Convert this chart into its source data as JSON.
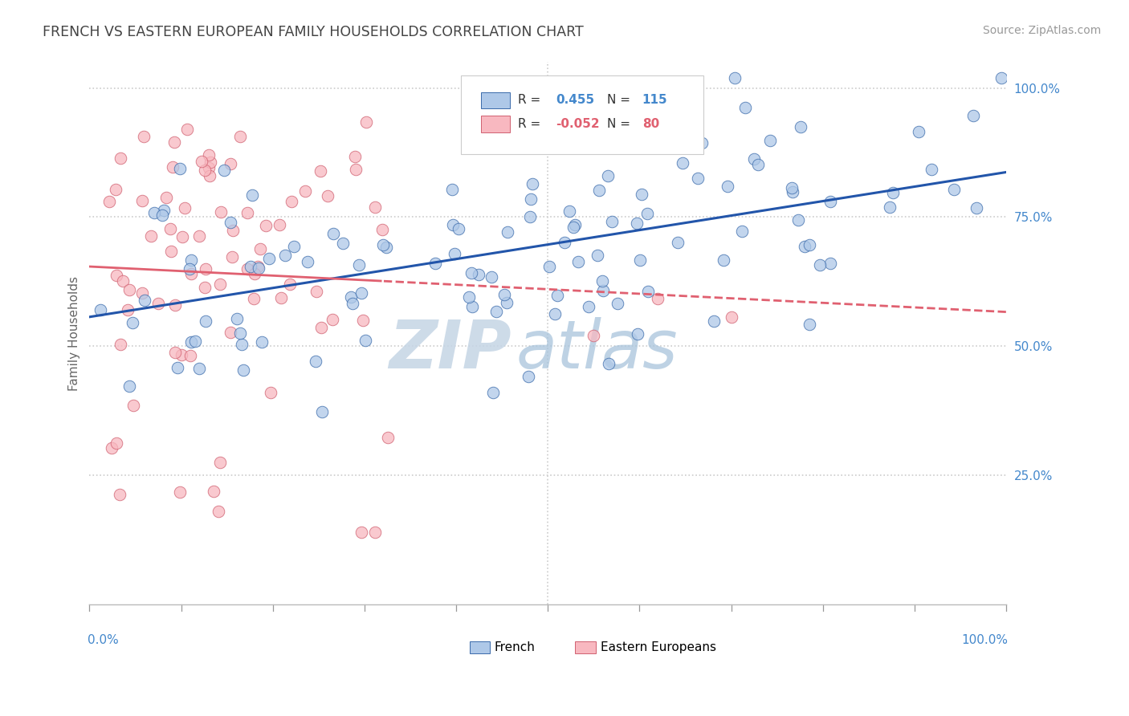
{
  "title": "FRENCH VS EASTERN EUROPEAN FAMILY HOUSEHOLDS CORRELATION CHART",
  "source": "Source: ZipAtlas.com",
  "ylabel": "Family Households",
  "right_yticks": [
    "100.0%",
    "75.0%",
    "50.0%",
    "25.0%"
  ],
  "right_ytick_vals": [
    1.0,
    0.75,
    0.5,
    0.25
  ],
  "legend_french": "French",
  "legend_eastern": "Eastern Europeans",
  "r_french": 0.455,
  "n_french": 115,
  "r_eastern": -0.052,
  "n_eastern": 80,
  "blue_fill": "#aec8e8",
  "blue_edge": "#3a6aaa",
  "pink_fill": "#f8b8c0",
  "pink_edge": "#d06070",
  "blue_line": "#2255aa",
  "pink_line": "#e06070",
  "watermark_zip_color": "#b8c8d8",
  "watermark_atlas_color": "#a8c4e0",
  "bg_color": "#ffffff",
  "title_color": "#444444",
  "axis_label_color": "#4488cc",
  "seed": 12345
}
